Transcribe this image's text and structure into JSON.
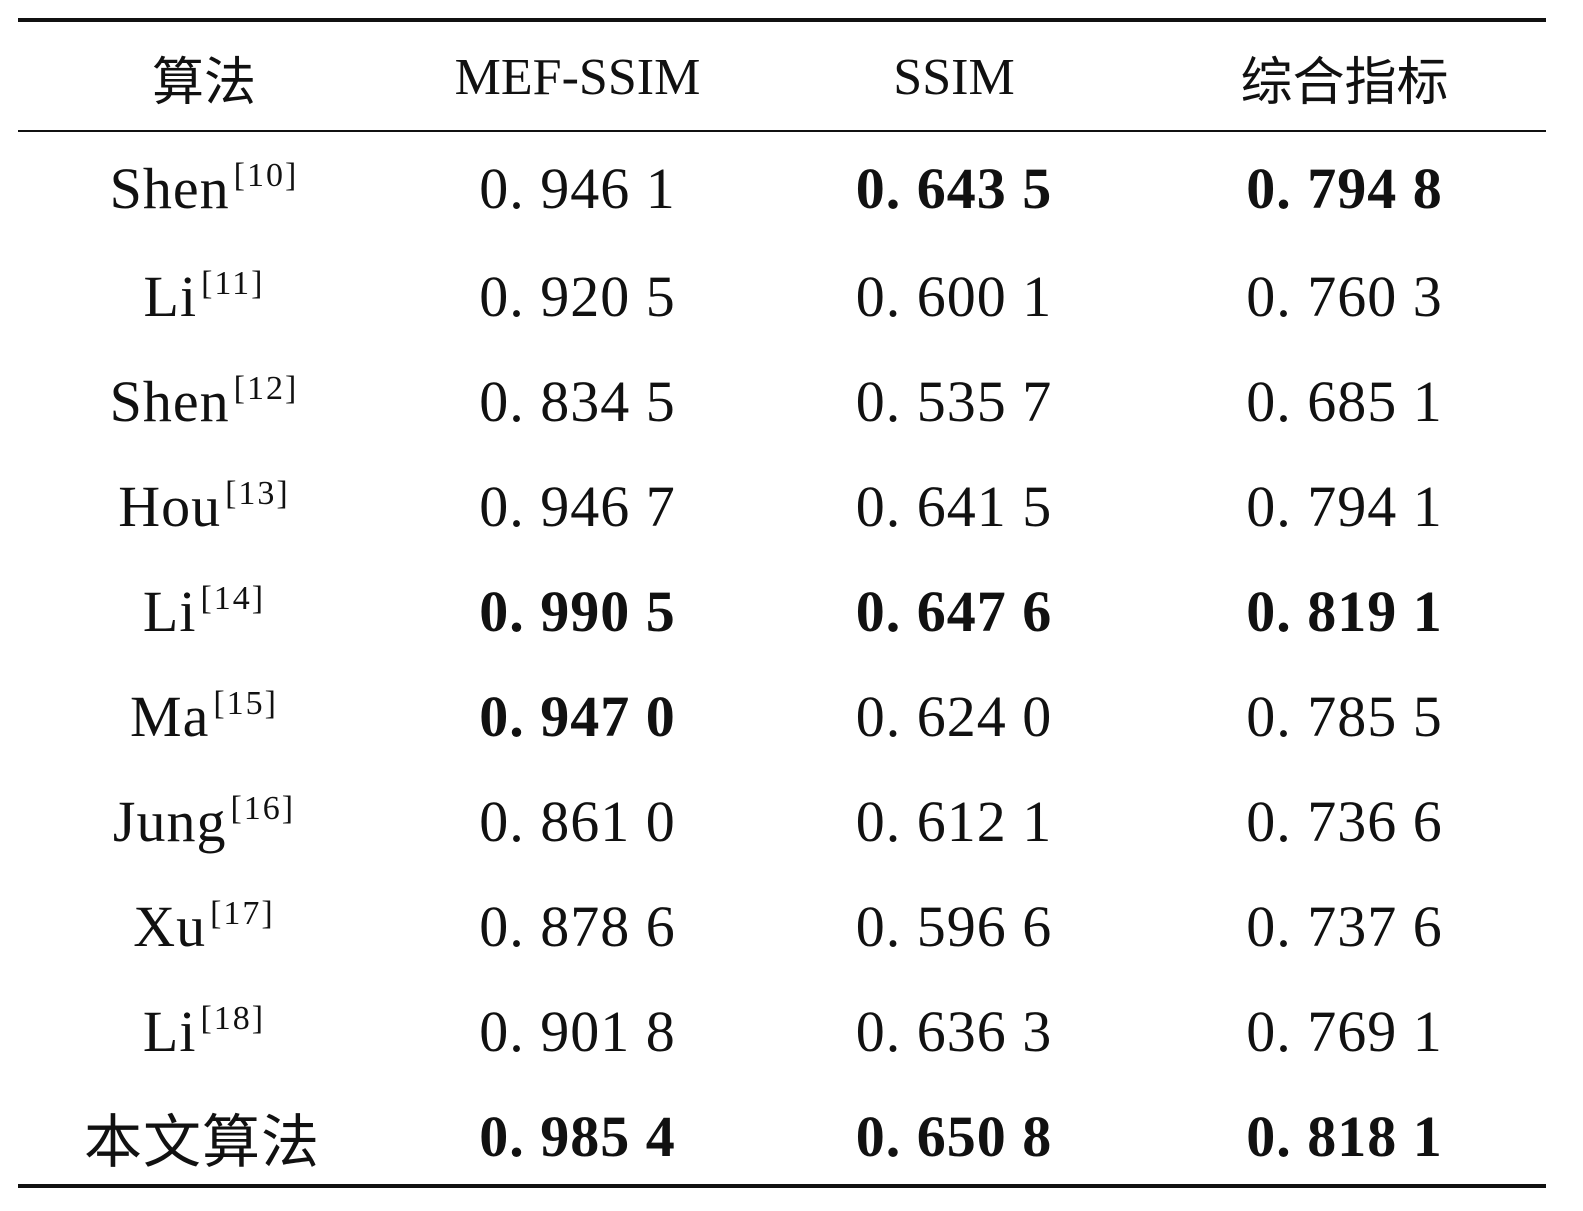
{
  "table": {
    "headers": [
      "算法",
      "MEF-SSIM",
      "SSIM",
      "综合指标"
    ],
    "rows": [
      {
        "name": "Shen",
        "ref": "[10]",
        "mef_ssim": "0. 946 1",
        "ssim": "0. 643 5",
        "combined": "0. 794 8",
        "bold": [
          false,
          true,
          true
        ]
      },
      {
        "name": "Li",
        "ref": "[11]",
        "mef_ssim": "0. 920 5",
        "ssim": "0. 600 1",
        "combined": "0. 760 3",
        "bold": [
          false,
          false,
          false
        ]
      },
      {
        "name": "Shen",
        "ref": "[12]",
        "mef_ssim": "0. 834 5",
        "ssim": "0. 535 7",
        "combined": "0. 685 1",
        "bold": [
          false,
          false,
          false
        ]
      },
      {
        "name": "Hou",
        "ref": "[13]",
        "mef_ssim": "0. 946 7",
        "ssim": "0. 641 5",
        "combined": "0. 794 1",
        "bold": [
          false,
          false,
          false
        ]
      },
      {
        "name": "Li",
        "ref": "[14]",
        "mef_ssim": "0. 990 5",
        "ssim": "0. 647 6",
        "combined": "0. 819 1",
        "bold": [
          true,
          true,
          true
        ]
      },
      {
        "name": "Ma",
        "ref": "[15]",
        "mef_ssim": "0. 947 0",
        "ssim": "0. 624 0",
        "combined": "0. 785 5",
        "bold": [
          true,
          false,
          false
        ]
      },
      {
        "name": "Jung",
        "ref": "[16]",
        "mef_ssim": "0. 861 0",
        "ssim": "0. 612 1",
        "combined": "0. 736 6",
        "bold": [
          false,
          false,
          false
        ]
      },
      {
        "name": "Xu",
        "ref": "[17]",
        "mef_ssim": "0. 878 6",
        "ssim": "0. 596 6",
        "combined": "0. 737 6",
        "bold": [
          false,
          false,
          false
        ]
      },
      {
        "name": "Li",
        "ref": "[18]",
        "mef_ssim": "0. 901 8",
        "ssim": "0. 636 3",
        "combined": "0. 769 1",
        "bold": [
          false,
          false,
          false
        ]
      },
      {
        "name": "本文算法",
        "ref": "",
        "mef_ssim": "0. 985 4",
        "ssim": "0. 650 8",
        "combined": "0. 818 1",
        "bold": [
          true,
          true,
          true
        ]
      }
    ]
  }
}
